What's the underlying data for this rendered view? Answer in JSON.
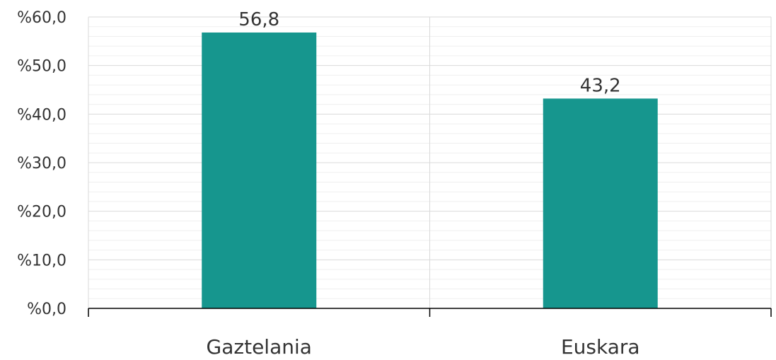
{
  "chart_data": {
    "type": "bar",
    "categories": [
      "Gaztelania",
      "Euskara"
    ],
    "values": [
      56.8,
      43.2
    ],
    "data_labels": [
      "56,8",
      "43,2"
    ],
    "ylim": [
      0,
      60
    ],
    "major_step": 10,
    "minor_step": 2,
    "y_tick_labels": [
      "%0,0",
      "%10,0",
      "%20,0",
      "%30,0",
      "%40,0",
      "%50,0",
      "%60,0"
    ],
    "grid": true,
    "legend": "none",
    "title": "",
    "xlabel": "",
    "ylabel": "",
    "colors": {
      "bar": "#16968e",
      "major_grid": "#d9d9d9",
      "minor_grid": "#efefef",
      "axis": "#000000",
      "text": "#333333"
    }
  }
}
